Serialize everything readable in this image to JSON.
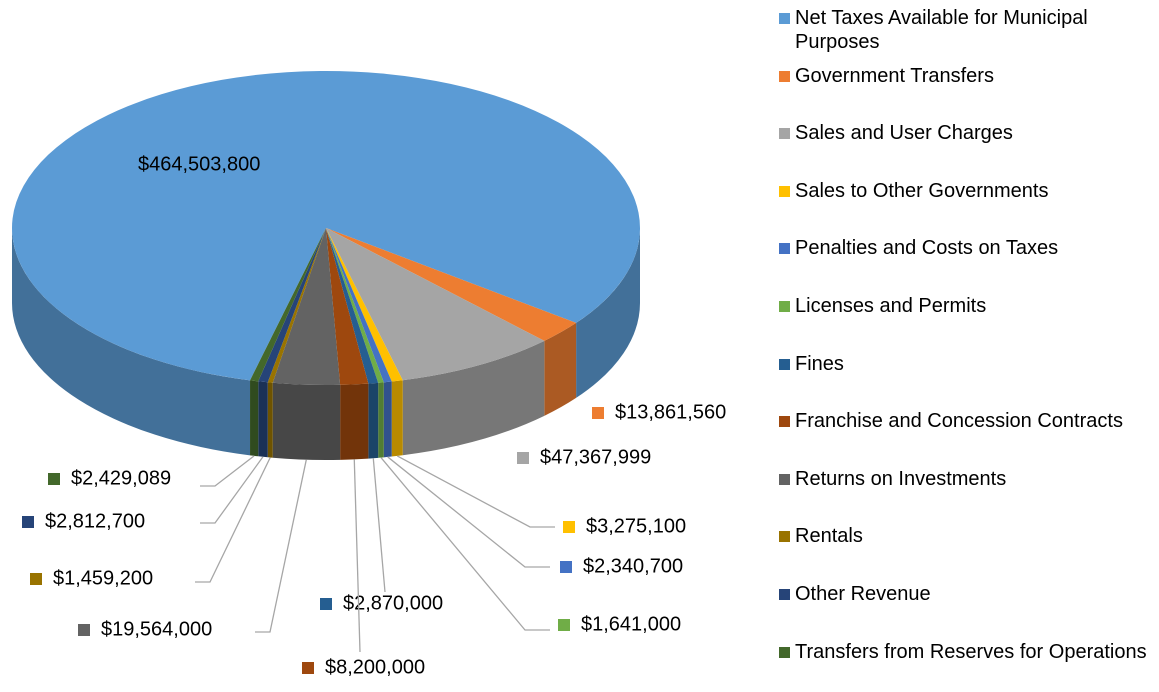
{
  "chart_data": {
    "type": "pie3d",
    "categories": [
      "Net Taxes Available for Municipal Purposes",
      "Government Transfers",
      "Sales and User Charges",
      "Sales to Other Governments",
      "Penalties and Costs on Taxes",
      "Licenses and Permits",
      "Fines",
      "Franchise and Concession Contracts",
      "Returns on Investments",
      "Rentals",
      "Other Revenue",
      "Transfers from Reserves for Operations"
    ],
    "values": [
      464503800,
      13861560,
      47367999,
      3275100,
      2340700,
      1641000,
      2870000,
      8200000,
      19564000,
      1459200,
      2812700,
      2429089
    ],
    "value_labels": [
      "$464,503,800",
      "$13,861,560",
      "$47,367,999",
      "$3,275,100",
      "$2,340,700",
      "$1,641,000",
      "$2,870,000",
      "$8,200,000",
      "$19,564,000",
      "$1,459,200",
      "$2,812,700",
      "$2,429,089"
    ],
    "colors": [
      "#5b9bd5",
      "#ed7d31",
      "#a5a5a5",
      "#ffc000",
      "#4472c4",
      "#70ad47",
      "#255e91",
      "#9e480e",
      "#636363",
      "#997300",
      "#264478",
      "#43682b"
    ],
    "legend": "right"
  }
}
